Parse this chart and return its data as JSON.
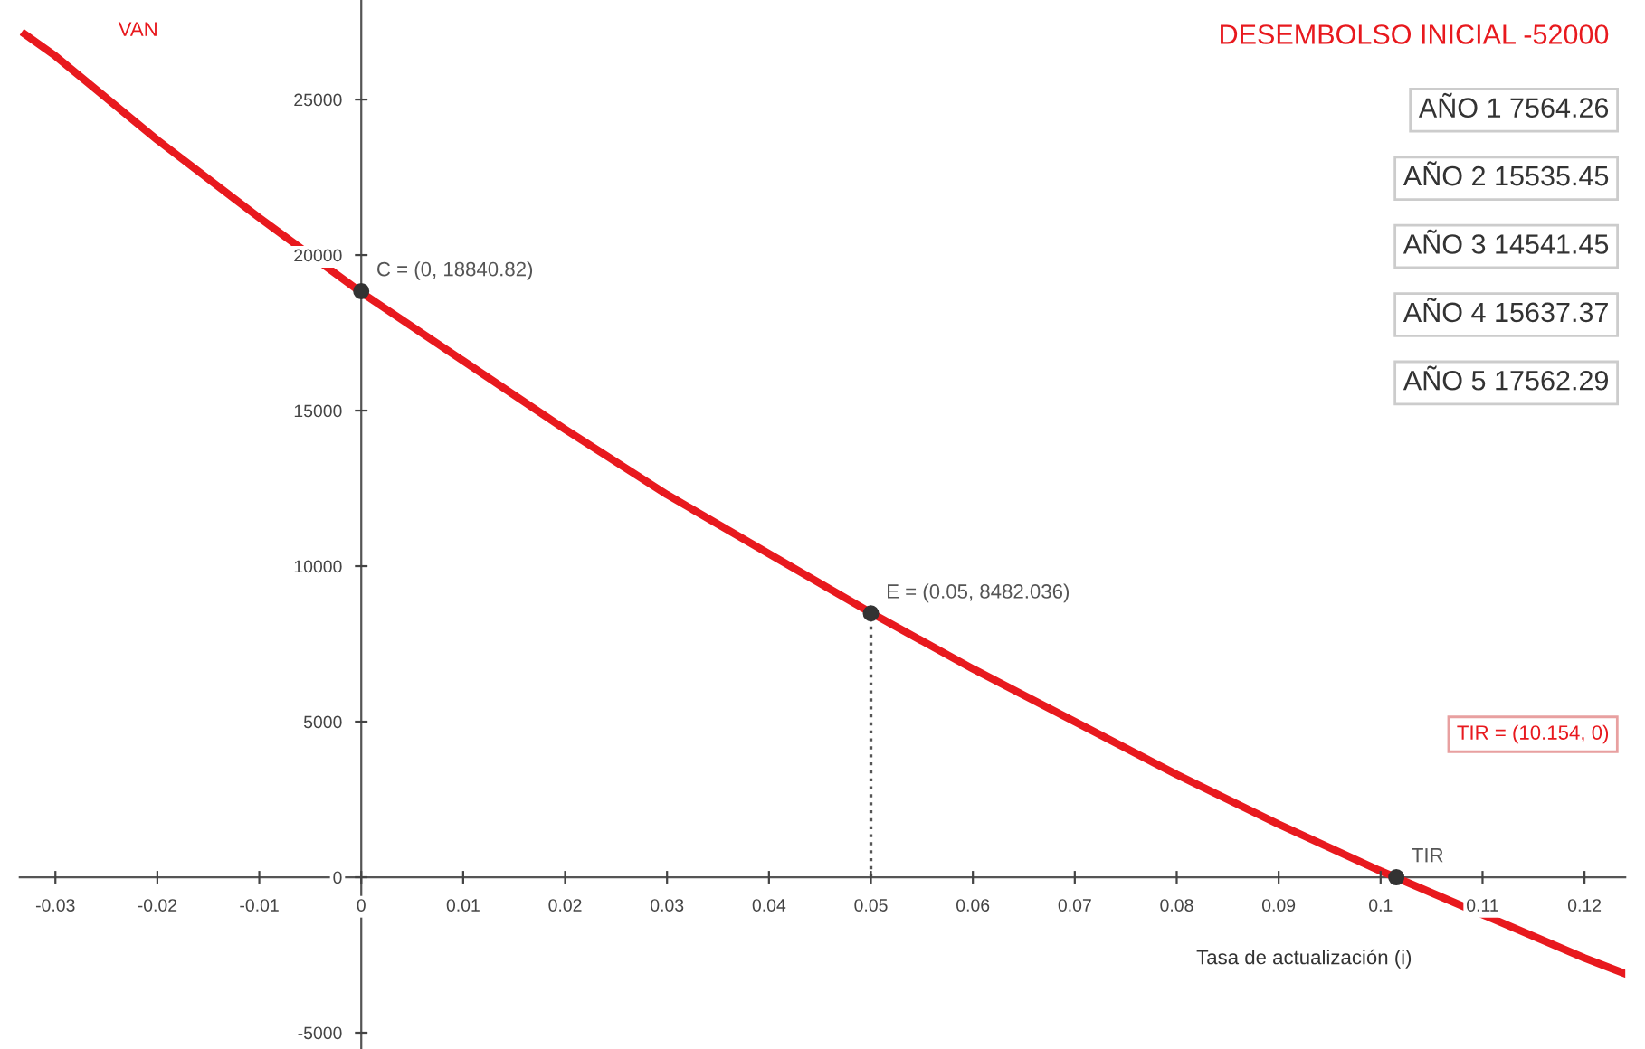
{
  "chart_data": {
    "type": "line",
    "xlabel": "Tasa de actualización (i)",
    "x": [
      -0.033,
      -0.03,
      -0.02,
      -0.01,
      0,
      0.01,
      0.02,
      0.03,
      0.04,
      0.05,
      0.06,
      0.07,
      0.08,
      0.09,
      0.1,
      0.11,
      0.12,
      0.124
    ],
    "series": [
      {
        "name": "VAN",
        "color": "#e8191e",
        "values": [
          27100,
          26400,
          23700,
          21200,
          18800,
          16600,
          14400,
          12300,
          10400,
          8500,
          6700,
          5000,
          3300,
          1700,
          200,
          -1200,
          -2600,
          -3100
        ]
      },
      {
        "type": "scatter",
        "color": "#333333",
        "x": [
          0,
          0.05,
          0.10154
        ],
        "values": [
          18840.82,
          8482.036,
          0
        ],
        "marker": "circle"
      },
      {
        "type": "line",
        "color": "#555555",
        "x": [
          0.05,
          0.05
        ],
        "values": [
          0,
          8482.036
        ],
        "line_style": "dotted"
      }
    ],
    "xlim": [
      -0.0335,
      0.124
    ],
    "ylim": [
      -5523,
      28200
    ],
    "xticks": [
      -0.03,
      -0.02,
      -0.01,
      0,
      0.01,
      0.02,
      0.03,
      0.04,
      0.05,
      0.06,
      0.07,
      0.08,
      0.09,
      0.1,
      0.11,
      0.12
    ],
    "yticks": [
      -5000,
      0,
      5000,
      10000,
      15000,
      20000,
      25000
    ],
    "grid": false,
    "annotations": [
      {
        "text": "C = (0, 18840.82)",
        "x": 0,
        "y": 18840.82
      },
      {
        "text": "E = (0.05, 8482.036)",
        "x": 0.05,
        "y": 8482.036
      },
      {
        "text": "TIR",
        "x": 0.10154,
        "y": 0
      },
      "DESEMBOLSO INICIAL -52000",
      "AÑO 1 7564.26",
      "AÑO 2 15535.45",
      "AÑO 3 14541.45",
      "AÑO 4 15637.37",
      "AÑO 5 17562.29",
      "TIR = (10.154, 0)"
    ]
  }
}
